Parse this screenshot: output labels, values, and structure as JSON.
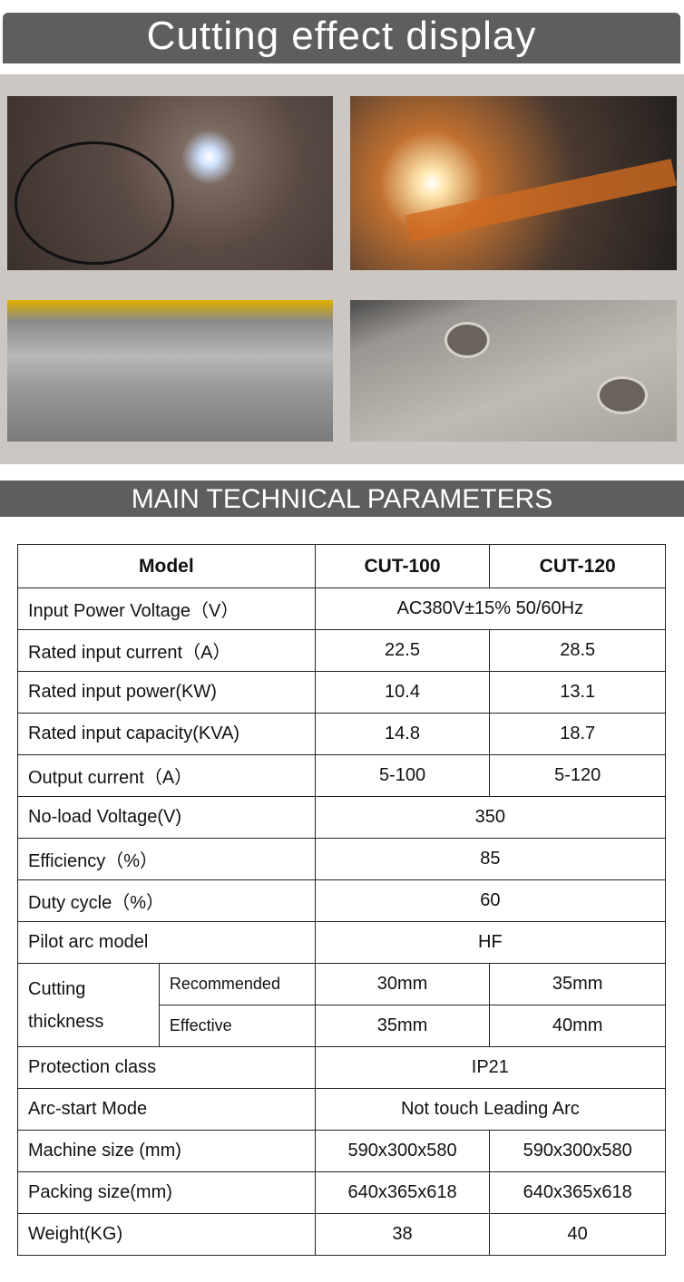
{
  "header": {
    "title": "Cutting effect display"
  },
  "photos": [
    {
      "name": "circle-cutting-photo"
    },
    {
      "name": "sparks-cutting-photo"
    },
    {
      "name": "thick-plate-cut-photo"
    },
    {
      "name": "flange-holes-photo"
    }
  ],
  "section": {
    "title": "MAIN TECHNICAL PARAMETERS"
  },
  "table": {
    "headers": [
      "Model",
      "CUT-100",
      "CUT-120"
    ],
    "rows": [
      {
        "label": "Input Power Voltage（V）",
        "merged": "AC380V±15% 50/60Hz"
      },
      {
        "label": "Rated input current（A）",
        "v1": "22.5",
        "v2": "28.5"
      },
      {
        "label": "Rated input power(KW)",
        "v1": "10.4",
        "v2": "13.1"
      },
      {
        "label": "Rated input capacity(KVA)",
        "v1": "14.8",
        "v2": "18.7"
      },
      {
        "label": "Output current（A）",
        "v1": "5-100",
        "v2": "5-120"
      },
      {
        "label": "No-load Voltage(V)",
        "merged": "350"
      },
      {
        "label": "Efficiency（%）",
        "merged": "85"
      },
      {
        "label": "Duty cycle（%）",
        "merged": "60"
      },
      {
        "label": "Pilot arc model",
        "merged": "HF"
      },
      {
        "label": "Protection class",
        "merged": "IP21"
      },
      {
        "label": "Arc-start Mode",
        "merged": "Not touch Leading Arc"
      },
      {
        "label": "Machine size (mm)",
        "v1": "590x300x580",
        "v2": "590x300x580"
      },
      {
        "label": "Packing size(mm)",
        "v1": "640x365x618",
        "v2": "640x365x618"
      },
      {
        "label": "Weight(KG)",
        "v1": "38",
        "v2": "40"
      }
    ],
    "thickness": {
      "label": "Cutting thickness",
      "recommended": {
        "label": "Recommended",
        "v1": "30mm",
        "v2": "35mm"
      },
      "effective": {
        "label": "Effective",
        "v1": "35mm",
        "v2": "40mm"
      }
    }
  }
}
